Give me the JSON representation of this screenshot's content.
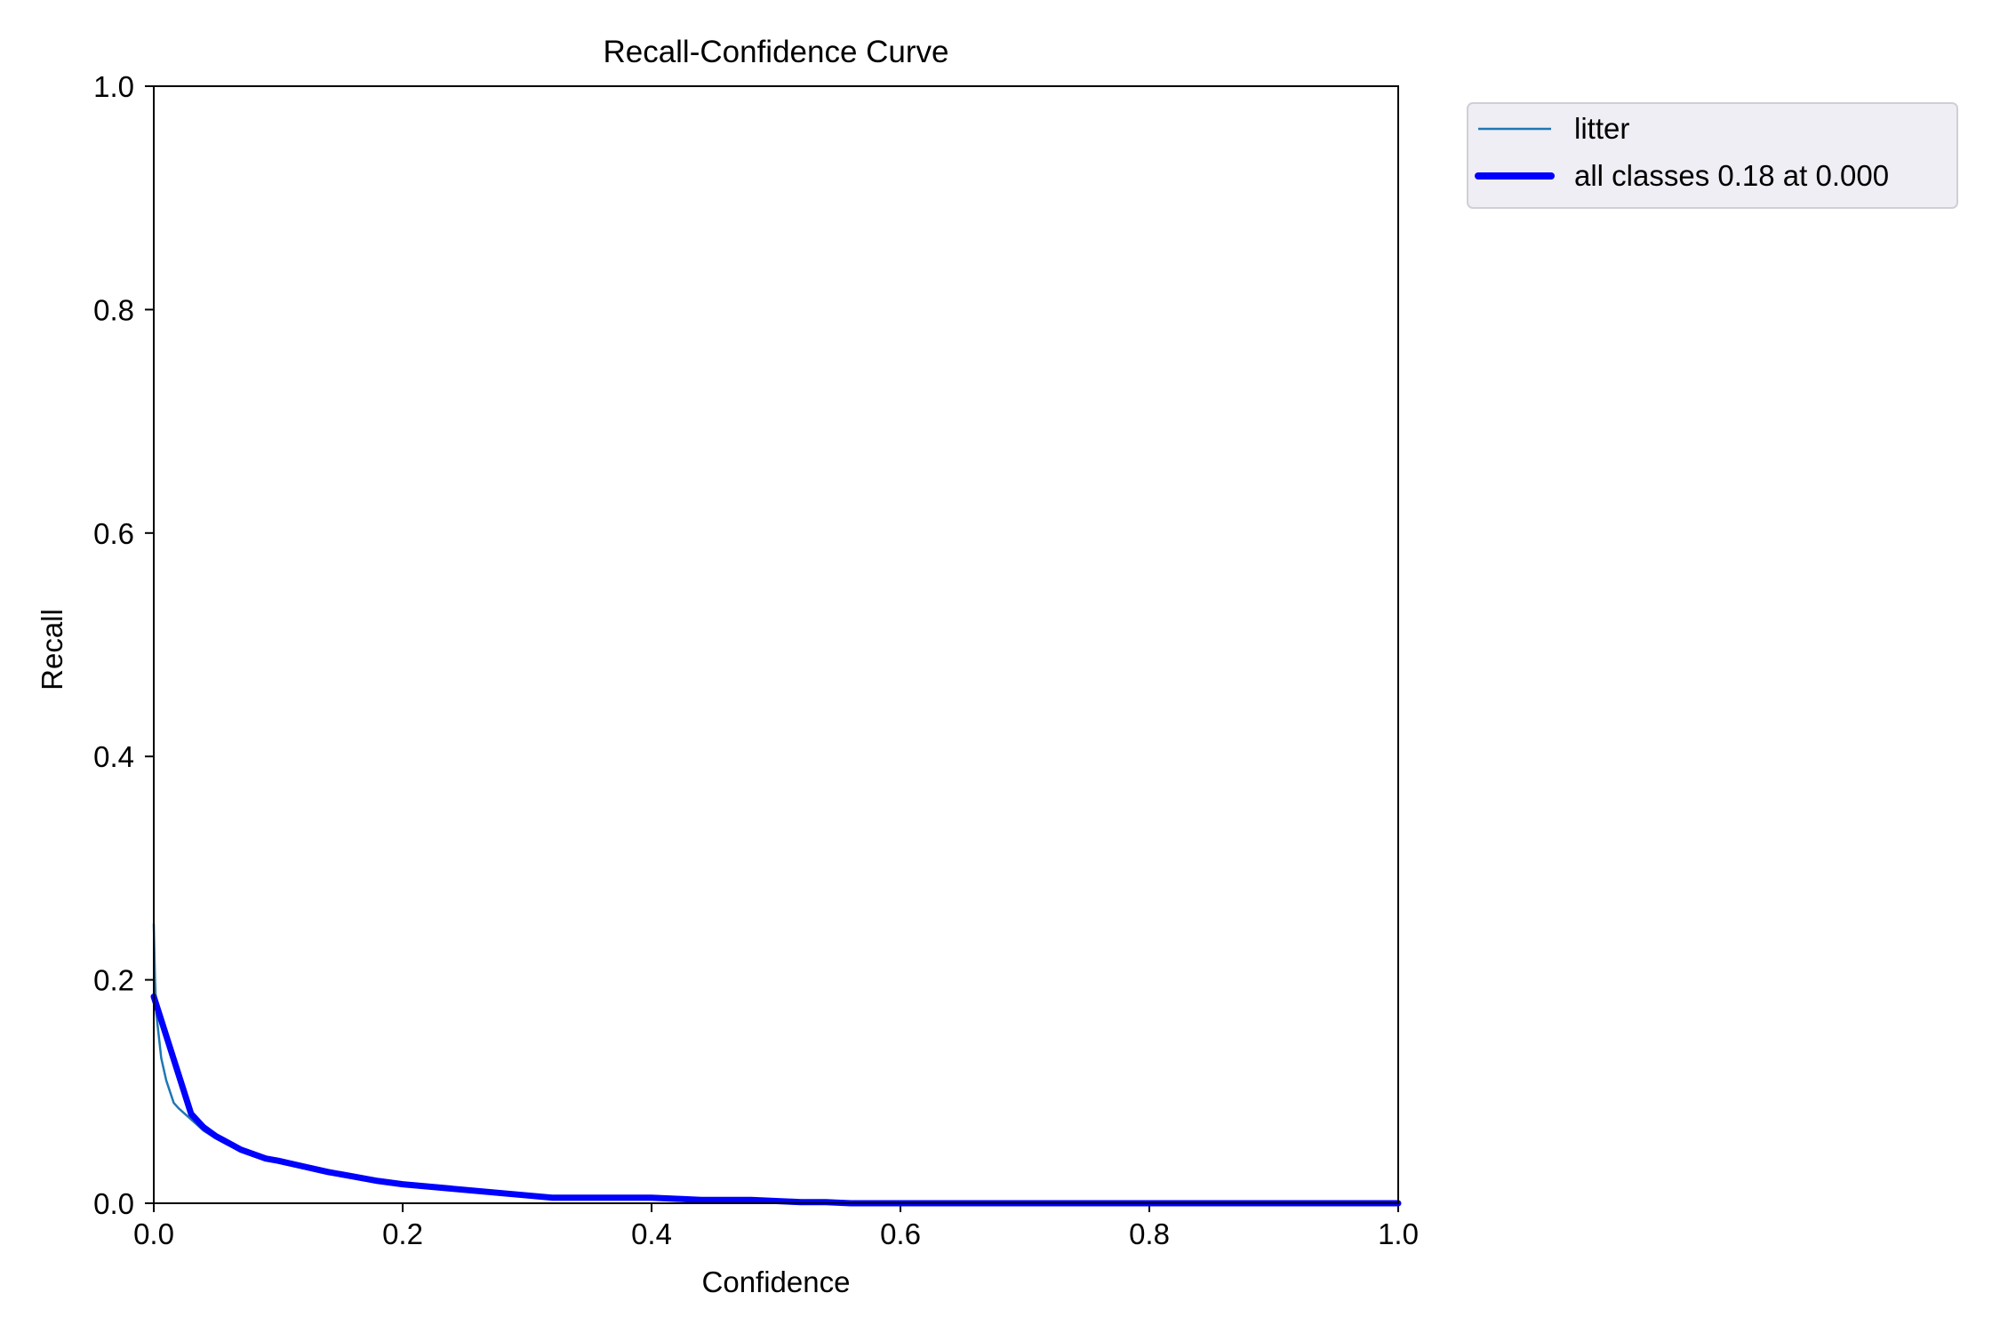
{
  "chart_data": {
    "type": "line",
    "title": "Recall-Confidence Curve",
    "xlabel": "Confidence",
    "ylabel": "Recall",
    "xlim": [
      0,
      1
    ],
    "ylim": [
      0,
      1
    ],
    "xticks": [
      "0.0",
      "0.2",
      "0.4",
      "0.6",
      "0.8",
      "1.0"
    ],
    "yticks": [
      "0.0",
      "0.2",
      "0.4",
      "0.6",
      "0.8",
      "1.0"
    ],
    "grid": false,
    "legend_position": "outside-top-right",
    "series": [
      {
        "name": "litter",
        "color": "#1f77b4",
        "x": [
          0.0,
          0.001,
          0.002,
          0.004,
          0.006,
          0.008,
          0.01,
          0.013,
          0.016,
          0.02,
          0.025,
          0.03,
          0.035,
          0.04,
          0.05,
          0.06,
          0.07,
          0.08,
          0.09,
          0.1,
          0.12,
          0.14,
          0.16,
          0.18,
          0.2,
          0.22,
          0.24,
          0.26,
          0.28,
          0.3,
          0.32,
          0.34,
          0.36,
          0.38,
          0.4,
          0.42,
          0.44,
          0.46,
          0.48,
          0.5,
          0.52,
          0.54,
          0.56,
          0.6,
          0.7,
          0.8,
          0.9,
          1.0
        ],
        "y": [
          0.25,
          0.2,
          0.17,
          0.15,
          0.13,
          0.12,
          0.11,
          0.1,
          0.09,
          0.085,
          0.08,
          0.075,
          0.07,
          0.065,
          0.058,
          0.052,
          0.047,
          0.043,
          0.04,
          0.037,
          0.033,
          0.028,
          0.024,
          0.02,
          0.017,
          0.015,
          0.013,
          0.011,
          0.009,
          0.007,
          0.005,
          0.005,
          0.005,
          0.005,
          0.005,
          0.004,
          0.003,
          0.003,
          0.003,
          0.002,
          0.001,
          0.001,
          0.0,
          0.0,
          0.0,
          0.0,
          0.0,
          0.0
        ]
      },
      {
        "name": "all classes 0.18 at 0.000",
        "color": "#0000ff",
        "x": [
          0.0,
          0.01,
          0.02,
          0.03,
          0.04,
          0.05,
          0.06,
          0.07,
          0.08,
          0.09,
          0.1,
          0.12,
          0.14,
          0.16,
          0.18,
          0.2,
          0.22,
          0.24,
          0.26,
          0.28,
          0.3,
          0.32,
          0.34,
          0.36,
          0.38,
          0.4,
          0.42,
          0.44,
          0.46,
          0.48,
          0.5,
          0.52,
          0.54,
          0.56,
          0.6,
          0.7,
          0.8,
          0.9,
          1.0
        ],
        "y": [
          0.185,
          0.15,
          0.115,
          0.08,
          0.068,
          0.06,
          0.054,
          0.048,
          0.044,
          0.04,
          0.038,
          0.033,
          0.028,
          0.024,
          0.02,
          0.017,
          0.015,
          0.013,
          0.011,
          0.009,
          0.007,
          0.005,
          0.005,
          0.005,
          0.005,
          0.005,
          0.004,
          0.003,
          0.003,
          0.003,
          0.002,
          0.001,
          0.001,
          0.0,
          0.0,
          0.0,
          0.0,
          0.0,
          0.0
        ]
      }
    ]
  }
}
